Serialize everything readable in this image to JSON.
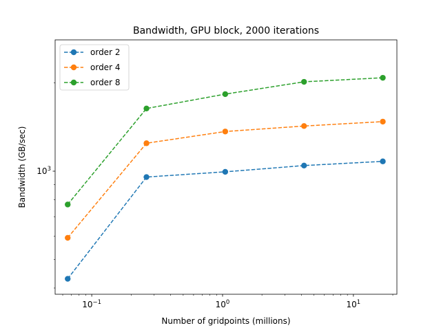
{
  "chart_data": {
    "type": "line",
    "title": "Bandwidth, GPU block, 2000 iterations",
    "xlabel": "Number of gridpoints (millions)",
    "ylabel": "Bandwidth (GB/sec)",
    "xscale": "log",
    "yscale": "log",
    "xlim": [
      0.0525,
      21.5
    ],
    "ylim": [
      381,
      2800
    ],
    "x": [
      0.0655,
      0.262,
      1.048,
      4.194,
      16.777
    ],
    "x_ticks": [
      {
        "value": 0.1,
        "base": "10",
        "exp": "−1"
      },
      {
        "value": 1,
        "base": "10",
        "exp": "0"
      },
      {
        "value": 10,
        "base": "10",
        "exp": "1"
      }
    ],
    "y_ticks": [
      {
        "value": 1000,
        "base": "10",
        "exp": "3"
      }
    ],
    "series": [
      {
        "name": "order 2",
        "color": "#1f77b4",
        "values": [
          430,
          955,
          995,
          1045,
          1080
        ]
      },
      {
        "name": "order 4",
        "color": "#ff7f0e",
        "values": [
          593,
          1245,
          1365,
          1425,
          1475
        ]
      },
      {
        "name": "order 8",
        "color": "#2ca02c",
        "values": [
          770,
          1635,
          1830,
          2015,
          2080
        ]
      }
    ],
    "grid": false,
    "legend_position": "upper left",
    "line_style": "dashed",
    "marker": "circle"
  }
}
